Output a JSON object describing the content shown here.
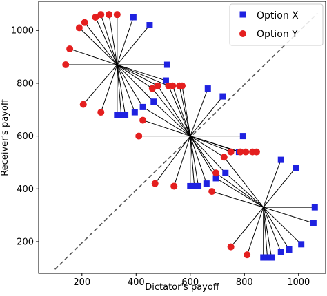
{
  "chart_data": {
    "type": "scatter",
    "xlabel": "Dictator's payoff",
    "ylabel": "Receiver's payoff",
    "xlim": [
      40,
      1100
    ],
    "ylim": [
      80,
      1110
    ],
    "xticks": [
      200,
      400,
      600,
      800,
      1000
    ],
    "yticks": [
      200,
      400,
      600,
      800,
      1000
    ],
    "legend_position": "top-right",
    "diagonal": {
      "style": "dashed",
      "color": "#555555",
      "from": [
        100,
        95
      ],
      "to": [
        1070,
        1065
      ]
    },
    "centers": [
      {
        "x": 330,
        "y": 870
      },
      {
        "x": 600,
        "y": 600
      },
      {
        "x": 870,
        "y": 330
      }
    ],
    "series": [
      {
        "name": "Option X",
        "color": "#1f22e0",
        "marker": "square",
        "points": [
          [
            390,
            1050
          ],
          [
            450,
            1020
          ],
          [
            515,
            870
          ],
          [
            510,
            810
          ],
          [
            465,
            730
          ],
          [
            425,
            710
          ],
          [
            395,
            690
          ],
          [
            360,
            680
          ],
          [
            345,
            680
          ],
          [
            330,
            680
          ],
          [
            665,
            780
          ],
          [
            720,
            750
          ],
          [
            795,
            600
          ],
          [
            780,
            540
          ],
          [
            730,
            460
          ],
          [
            695,
            440
          ],
          [
            660,
            420
          ],
          [
            630,
            410
          ],
          [
            615,
            410
          ],
          [
            600,
            410
          ],
          [
            935,
            510
          ],
          [
            990,
            480
          ],
          [
            1060,
            330
          ],
          [
            1055,
            270
          ],
          [
            1010,
            190
          ],
          [
            965,
            170
          ],
          [
            935,
            160
          ],
          [
            900,
            140
          ],
          [
            885,
            140
          ],
          [
            870,
            140
          ]
        ]
      },
      {
        "name": "Option Y",
        "color": "#e41f1f",
        "marker": "circle",
        "points": [
          [
            190,
            1010
          ],
          [
            210,
            1030
          ],
          [
            250,
            1050
          ],
          [
            270,
            1060
          ],
          [
            300,
            1060
          ],
          [
            330,
            1060
          ],
          [
            155,
            930
          ],
          [
            140,
            870
          ],
          [
            205,
            720
          ],
          [
            270,
            690
          ],
          [
            460,
            780
          ],
          [
            480,
            790
          ],
          [
            520,
            790
          ],
          [
            535,
            790
          ],
          [
            560,
            790
          ],
          [
            570,
            790
          ],
          [
            425,
            660
          ],
          [
            410,
            600
          ],
          [
            470,
            420
          ],
          [
            540,
            410
          ],
          [
            725,
            520
          ],
          [
            750,
            540
          ],
          [
            785,
            540
          ],
          [
            805,
            540
          ],
          [
            830,
            540
          ],
          [
            845,
            540
          ],
          [
            695,
            460
          ],
          [
            680,
            390
          ],
          [
            750,
            180
          ],
          [
            810,
            150
          ]
        ]
      }
    ]
  }
}
